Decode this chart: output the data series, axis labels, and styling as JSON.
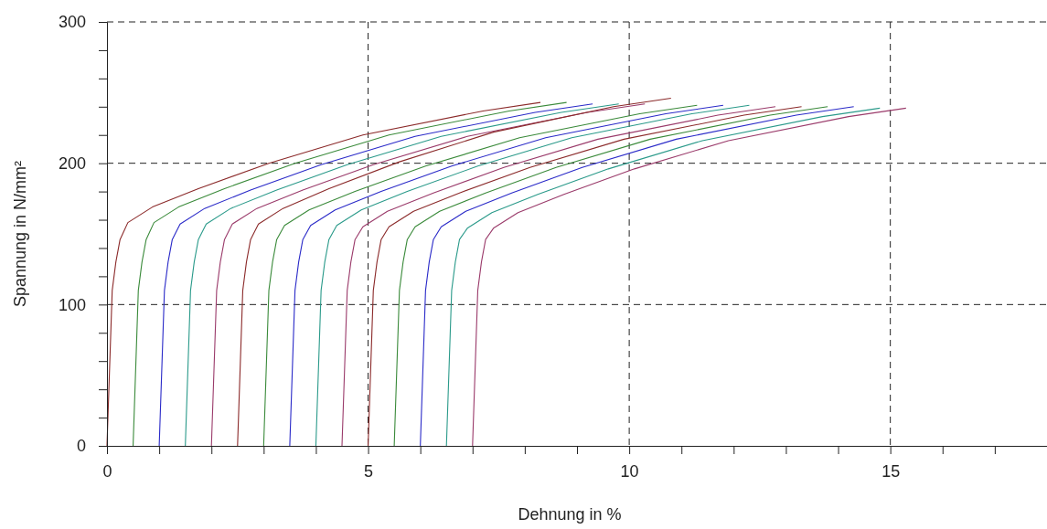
{
  "chart_data": {
    "type": "line",
    "xlabel": "Dehnung in %",
    "ylabel": "Spannung in N/mm²",
    "xlim": [
      0,
      18
    ],
    "ylim": [
      0,
      300
    ],
    "xticks": [
      0,
      {
        "value": 1,
        "label": null
      },
      {
        "value": 2,
        "label": null
      },
      {
        "value": 3,
        "label": null
      },
      {
        "value": 4,
        "label": null
      },
      5,
      {
        "value": 6,
        "label": null
      },
      {
        "value": 7,
        "label": null
      },
      {
        "value": 8,
        "label": null
      },
      {
        "value": 9,
        "label": null
      },
      10,
      {
        "value": 11,
        "label": null
      },
      {
        "value": 12,
        "label": null
      },
      {
        "value": 13,
        "label": null
      },
      {
        "value": 14,
        "label": null
      },
      15,
      {
        "value": 16,
        "label": null
      },
      {
        "value": 17,
        "label": null
      },
      {
        "value": 18,
        "label": null
      }
    ],
    "yticks": [
      0,
      {
        "value": 20,
        "label": null
      },
      {
        "value": 40,
        "label": null
      },
      {
        "value": 60,
        "label": null
      },
      {
        "value": 80,
        "label": null
      },
      100,
      {
        "value": 120,
        "label": null
      },
      {
        "value": 140,
        "label": null
      },
      {
        "value": 160,
        "label": null
      },
      {
        "value": 180,
        "label": null
      },
      200,
      {
        "value": 220,
        "label": null
      },
      {
        "value": 240,
        "label": null
      },
      {
        "value": 260,
        "label": null
      },
      {
        "value": 280,
        "label": null
      },
      300
    ],
    "grid": true,
    "marker": "none",
    "line_style": "solid",
    "series": [
      {
        "color": "#8b2a2a",
        "x": [
          0,
          0.1,
          0.17,
          0.25,
          0.4,
          0.87,
          1.75,
          3.1,
          4.9,
          7.2,
          8.3
        ],
        "values": [
          0,
          110,
          130,
          146,
          158,
          169,
          182,
          200,
          220,
          237,
          243
        ]
      },
      {
        "color": "#3a8a3a",
        "x": [
          0.5,
          0.6,
          0.67,
          0.75,
          0.9,
          1.37,
          2.25,
          3.6,
          5.4,
          7.7,
          8.8
        ],
        "values": [
          0,
          110,
          130,
          146,
          158,
          169,
          182,
          200,
          220,
          237,
          243
        ]
      },
      {
        "color": "#2a2ac8",
        "x": [
          1,
          1.1,
          1.17,
          1.25,
          1.4,
          1.87,
          2.75,
          4.1,
          5.9,
          8.2,
          9.3
        ],
        "values": [
          0,
          110,
          130,
          146,
          157,
          168,
          181,
          199,
          219,
          236,
          242
        ]
      },
      {
        "color": "#2a9a8a",
        "x": [
          1.5,
          1.6,
          1.67,
          1.75,
          1.9,
          2.37,
          3.25,
          4.6,
          6.4,
          8.7,
          9.8
        ],
        "values": [
          0,
          110,
          130,
          146,
          157,
          168,
          181,
          199,
          219,
          236,
          242
        ]
      },
      {
        "color": "#9a3a6a",
        "x": [
          2,
          2.1,
          2.17,
          2.25,
          2.4,
          2.87,
          3.75,
          5.1,
          6.9,
          9.2,
          10.3
        ],
        "values": [
          0,
          110,
          130,
          146,
          157,
          168,
          181,
          199,
          219,
          236,
          242
        ]
      },
      {
        "color": "#8b2a2a",
        "x": [
          2.5,
          2.6,
          2.67,
          2.75,
          2.9,
          3.37,
          4.25,
          5.6,
          7.4,
          9.7,
          10.8
        ],
        "values": [
          0,
          110,
          130,
          146,
          157,
          168,
          182,
          201,
          222,
          240,
          246
        ]
      },
      {
        "color": "#3a8a3a",
        "x": [
          3,
          3.1,
          3.17,
          3.25,
          3.4,
          3.87,
          4.75,
          6.1,
          7.9,
          10.2,
          11.3
        ],
        "values": [
          0,
          110,
          130,
          146,
          156,
          167,
          180,
          198,
          218,
          235,
          241
        ]
      },
      {
        "color": "#2a2ac8",
        "x": [
          3.5,
          3.6,
          3.67,
          3.75,
          3.9,
          4.37,
          5.25,
          6.6,
          8.4,
          10.7,
          11.8
        ],
        "values": [
          0,
          110,
          130,
          146,
          156,
          167,
          180,
          198,
          218,
          235,
          241
        ]
      },
      {
        "color": "#2a9a8a",
        "x": [
          4,
          4.1,
          4.17,
          4.25,
          4.4,
          4.87,
          5.75,
          7.1,
          8.9,
          11.2,
          12.3
        ],
        "values": [
          0,
          110,
          130,
          146,
          156,
          167,
          180,
          198,
          218,
          235,
          241
        ]
      },
      {
        "color": "#9a3a6a",
        "x": [
          4.5,
          4.6,
          4.67,
          4.75,
          4.9,
          5.37,
          6.25,
          7.6,
          9.4,
          11.7,
          12.8
        ],
        "values": [
          0,
          110,
          130,
          146,
          155,
          166,
          179,
          197,
          217,
          234,
          240
        ]
      },
      {
        "color": "#8b2a2a",
        "x": [
          5,
          5.1,
          5.17,
          5.25,
          5.4,
          5.87,
          6.75,
          8.1,
          9.9,
          12.2,
          13.3
        ],
        "values": [
          0,
          110,
          130,
          146,
          155,
          166,
          179,
          197,
          217,
          234,
          240
        ]
      },
      {
        "color": "#3a8a3a",
        "x": [
          5.5,
          5.6,
          5.67,
          5.75,
          5.9,
          6.37,
          7.25,
          8.6,
          10.4,
          12.7,
          13.8
        ],
        "values": [
          0,
          110,
          130,
          146,
          155,
          166,
          179,
          197,
          217,
          234,
          240
        ]
      },
      {
        "color": "#2a2ac8",
        "x": [
          6,
          6.1,
          6.17,
          6.25,
          6.4,
          6.87,
          7.75,
          9.1,
          10.9,
          13.2,
          14.3
        ],
        "values": [
          0,
          110,
          130,
          146,
          155,
          166,
          179,
          197,
          217,
          234,
          240
        ]
      },
      {
        "color": "#2a9a8a",
        "x": [
          6.5,
          6.6,
          6.67,
          6.75,
          6.9,
          7.37,
          8.25,
          9.6,
          11.4,
          13.7,
          14.8
        ],
        "values": [
          0,
          110,
          130,
          146,
          154,
          165,
          178,
          196,
          216,
          233,
          239
        ]
      },
      {
        "color": "#9a3a6a",
        "x": [
          7,
          7.1,
          7.17,
          7.25,
          7.4,
          7.87,
          8.75,
          10.1,
          11.9,
          14.2,
          15.3
        ],
        "values": [
          0,
          110,
          130,
          146,
          154,
          165,
          178,
          196,
          216,
          233,
          239
        ]
      }
    ]
  }
}
